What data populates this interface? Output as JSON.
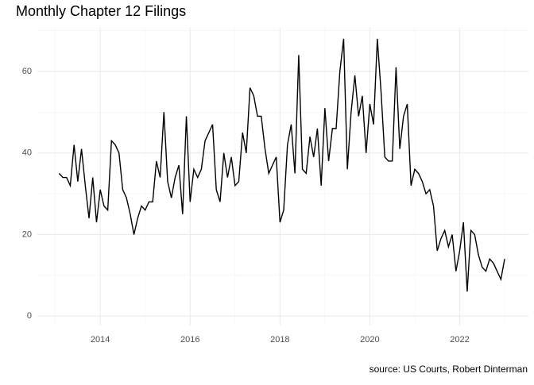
{
  "chart_data": {
    "type": "line",
    "title": "Monthly Chapter 12 Filings",
    "caption": "source: US Courts, Robert Dinterman",
    "x": [
      2013.083,
      2013.167,
      2013.25,
      2013.333,
      2013.417,
      2013.5,
      2013.583,
      2013.667,
      2013.75,
      2013.833,
      2013.917,
      2014,
      2014.083,
      2014.167,
      2014.25,
      2014.333,
      2014.417,
      2014.5,
      2014.583,
      2014.667,
      2014.75,
      2014.833,
      2014.917,
      2015,
      2015.083,
      2015.167,
      2015.25,
      2015.333,
      2015.417,
      2015.5,
      2015.583,
      2015.667,
      2015.75,
      2015.833,
      2015.917,
      2016,
      2016.083,
      2016.167,
      2016.25,
      2016.333,
      2016.417,
      2016.5,
      2016.583,
      2016.667,
      2016.75,
      2016.833,
      2016.917,
      2017,
      2017.083,
      2017.167,
      2017.25,
      2017.333,
      2017.417,
      2017.5,
      2017.583,
      2017.667,
      2017.75,
      2017.833,
      2017.917,
      2018,
      2018.083,
      2018.167,
      2018.25,
      2018.333,
      2018.417,
      2018.5,
      2018.583,
      2018.667,
      2018.75,
      2018.833,
      2018.917,
      2019,
      2019.083,
      2019.167,
      2019.25,
      2019.333,
      2019.417,
      2019.5,
      2019.583,
      2019.667,
      2019.75,
      2019.833,
      2019.917,
      2020,
      2020.083,
      2020.167,
      2020.25,
      2020.333,
      2020.417,
      2020.5,
      2020.583,
      2020.667,
      2020.75,
      2020.833,
      2020.917,
      2021,
      2021.083,
      2021.167,
      2021.25,
      2021.333,
      2021.417,
      2021.5,
      2021.583,
      2021.667,
      2021.75,
      2021.833,
      2021.917,
      2022,
      2022.083,
      2022.167,
      2022.25,
      2022.333,
      2022.417,
      2022.5,
      2022.583,
      2022.667,
      2022.75,
      2022.833,
      2022.917,
      2023
    ],
    "series": [
      {
        "color": "#000000",
        "values": [
          35,
          34,
          34,
          32,
          42,
          33,
          41,
          32,
          24,
          34,
          23,
          31,
          27,
          26,
          43,
          42,
          40,
          31,
          29,
          25,
          20,
          24,
          27,
          26,
          28,
          28,
          38,
          34,
          50,
          33,
          29,
          34,
          37,
          25,
          49,
          28,
          36,
          34,
          36,
          43,
          45,
          47,
          31,
          28,
          40,
          34,
          39,
          32,
          33,
          45,
          40,
          56,
          54,
          49,
          49,
          41,
          35,
          37,
          39,
          23,
          26,
          42,
          47,
          35,
          64,
          36,
          35,
          44,
          39,
          46,
          32,
          51,
          38,
          46,
          46,
          60,
          68,
          36,
          50,
          59,
          49,
          54,
          40,
          52,
          47,
          68,
          55,
          39,
          38,
          38,
          61,
          41,
          49,
          52,
          32,
          36,
          35,
          33,
          30,
          31,
          27,
          16,
          19,
          21,
          17,
          20,
          11,
          16,
          23,
          6,
          21,
          20,
          15,
          12,
          11,
          14,
          13,
          11,
          9,
          14
        ]
      }
    ],
    "xlim": [
      2012.6,
      2023.53
    ],
    "xticks": [
      2014,
      2016,
      2018,
      2020,
      2022
    ],
    "ylim": [
      -2.3,
      70.7
    ],
    "yticks": [
      0,
      20,
      40,
      60
    ],
    "grid": true
  }
}
